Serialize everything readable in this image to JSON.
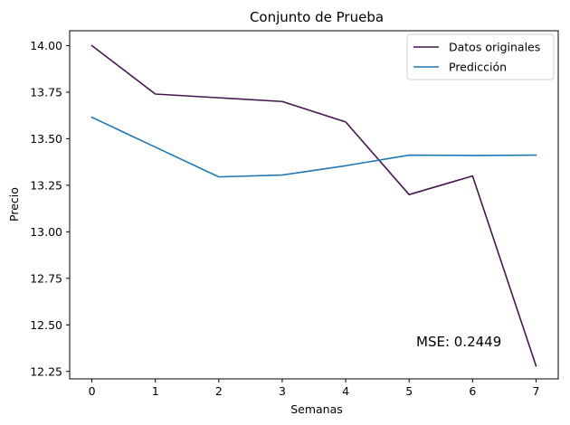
{
  "chart_data": {
    "type": "line",
    "title": "Conjunto de Prueba",
    "xlabel": "Semanas",
    "ylabel": "Precio",
    "x": [
      0,
      1,
      2,
      3,
      4,
      5,
      6,
      7
    ],
    "xlim": [
      -0.35,
      7.35
    ],
    "ylim": [
      12.21,
      14.08
    ],
    "xticks": [
      "0",
      "1",
      "2",
      "3",
      "4",
      "5",
      "6",
      "7"
    ],
    "yticks": [
      {
        "value": 12.25,
        "label": "12.25"
      },
      {
        "value": 12.5,
        "label": "12.50"
      },
      {
        "value": 12.75,
        "label": "12.75"
      },
      {
        "value": 13.0,
        "label": "13.00"
      },
      {
        "value": 13.25,
        "label": "13.25"
      },
      {
        "value": 13.5,
        "label": "13.50"
      },
      {
        "value": 13.75,
        "label": "13.75"
      },
      {
        "value": 14.0,
        "label": "14.00"
      }
    ],
    "grid": false,
    "legend_position": "top-right",
    "series": [
      {
        "name": "Datos originales",
        "color": "#44174e",
        "values": [
          14.0,
          13.74,
          13.72,
          13.7,
          13.59,
          13.2,
          13.3,
          12.28
        ]
      },
      {
        "name": "Predicción",
        "color": "#1f77b4",
        "values": [
          13.615,
          13.455,
          13.295,
          13.305,
          13.355,
          13.412,
          13.41,
          13.412
        ]
      }
    ],
    "annotation": {
      "text": "MSE: 0.2449",
      "position": "bottom-right"
    }
  }
}
